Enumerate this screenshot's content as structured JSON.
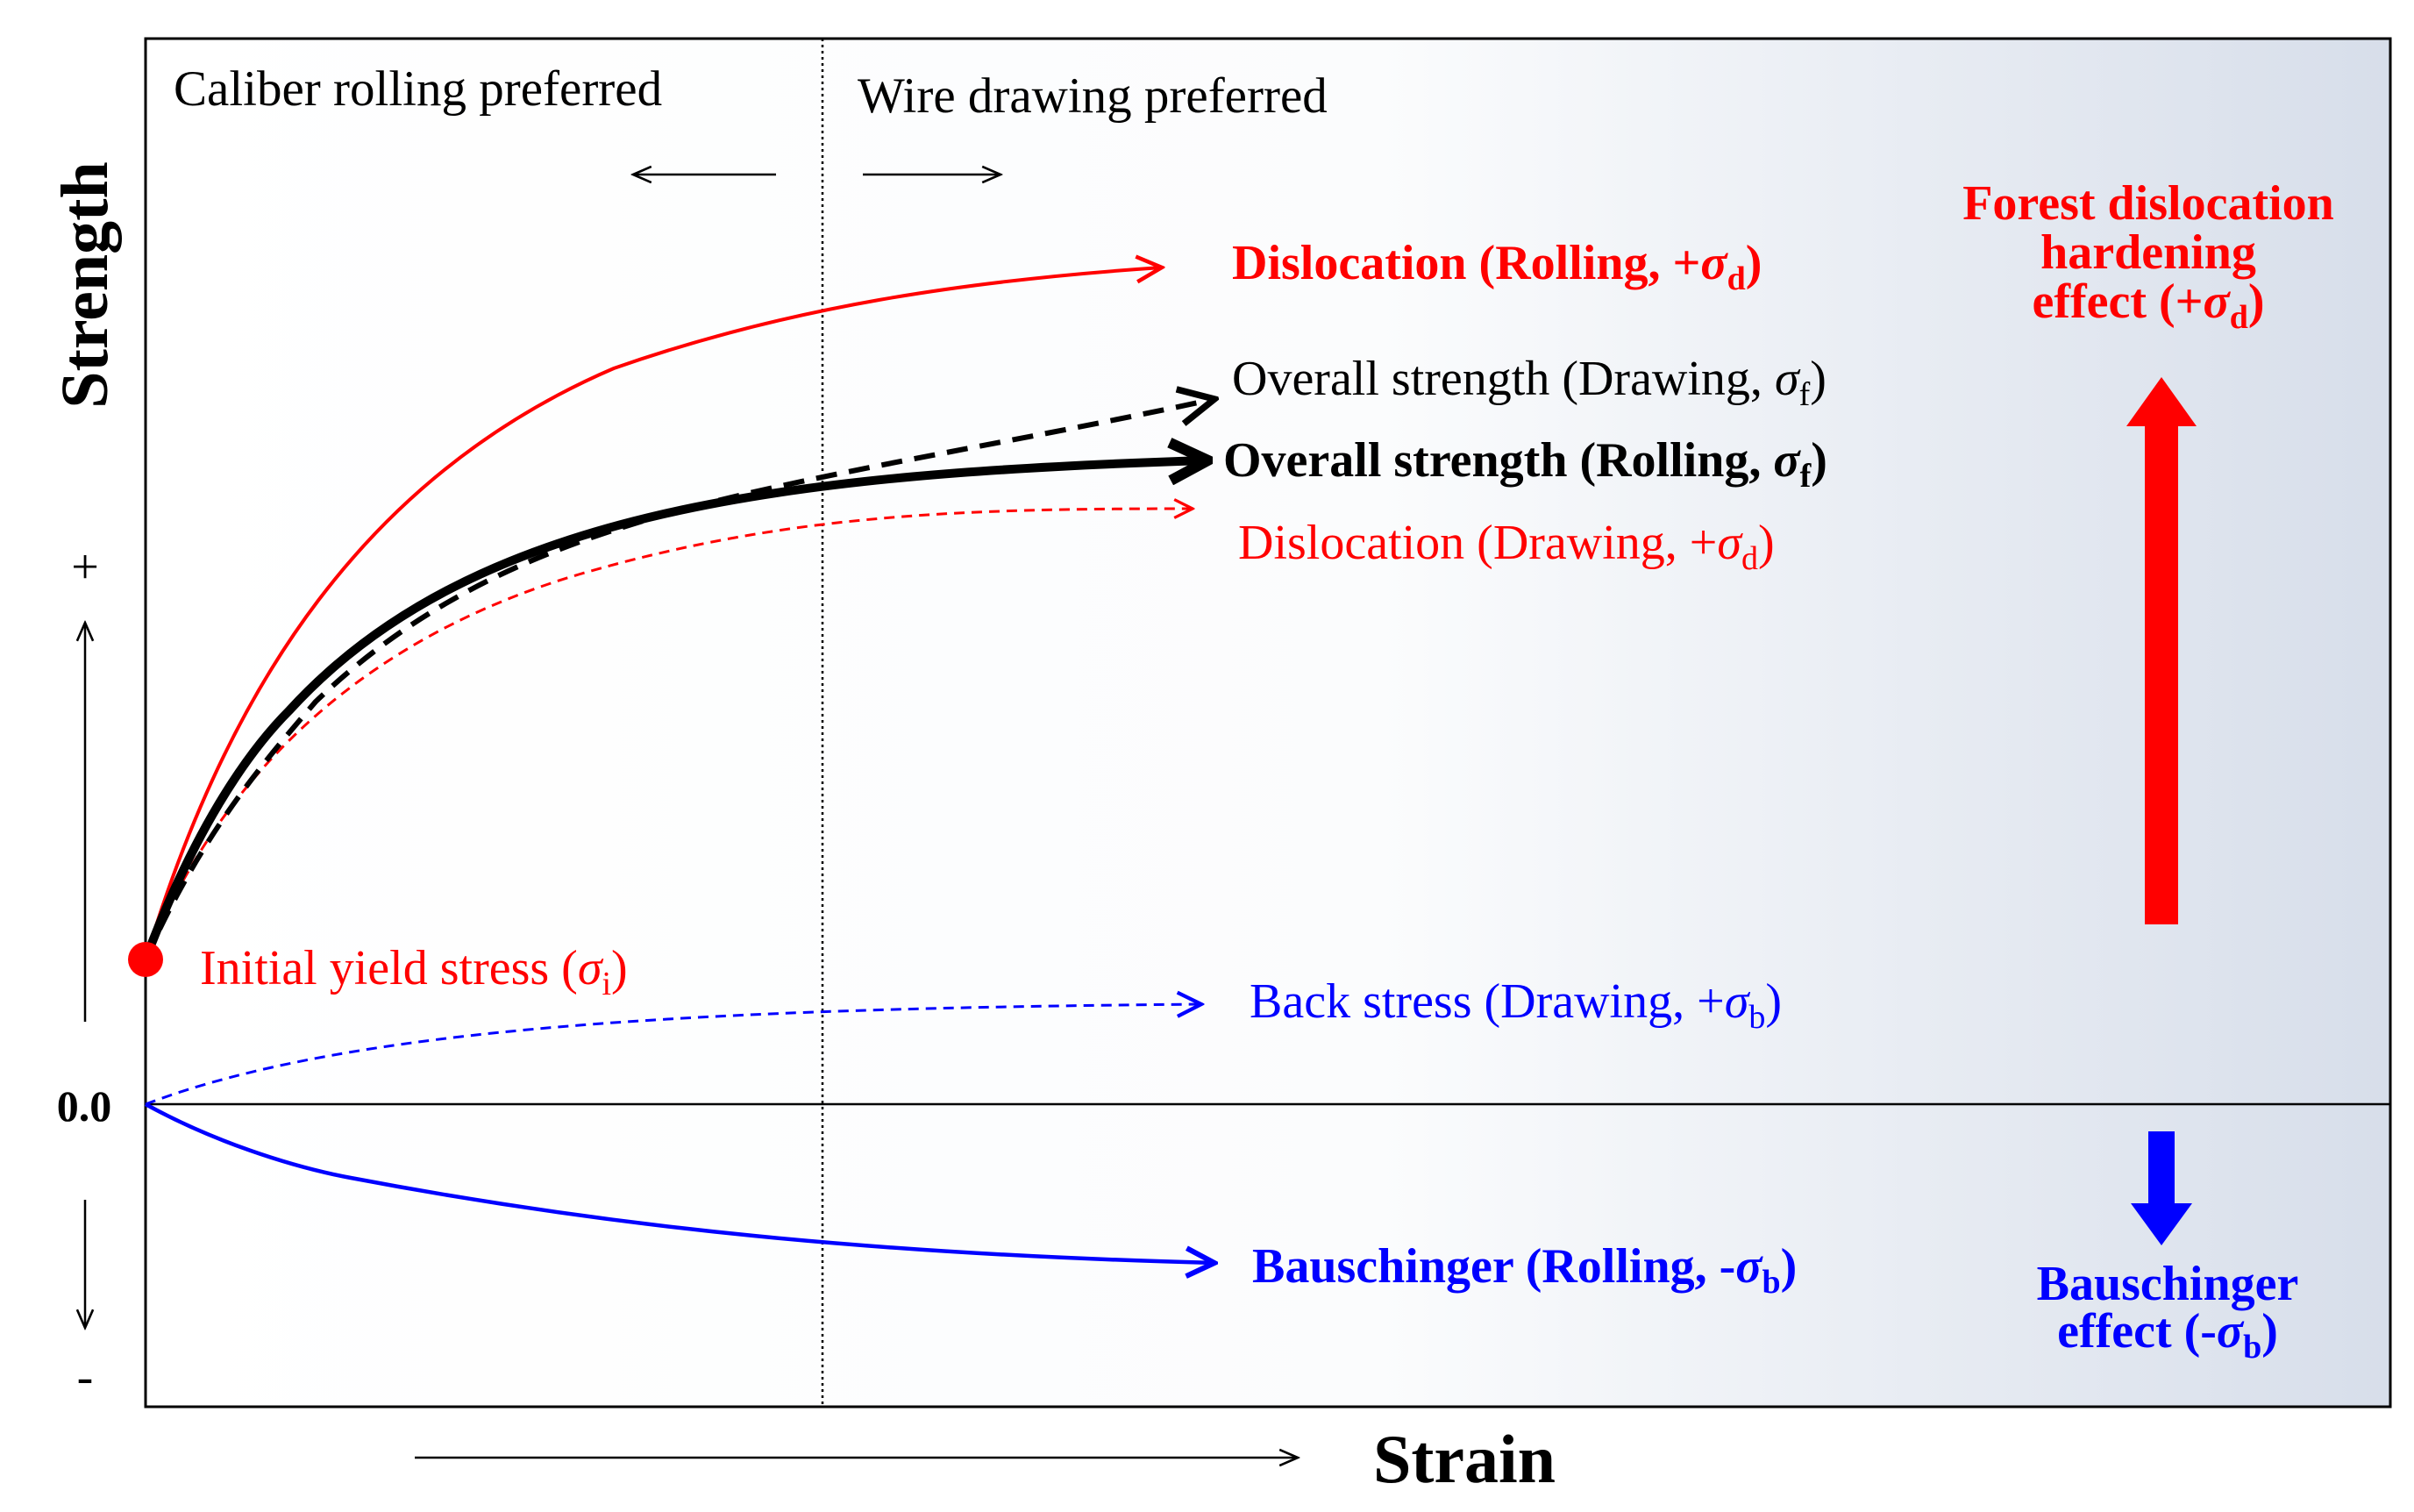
{
  "colors": {
    "red": "#ff0000",
    "blue": "#0000ff",
    "black": "#000000",
    "panel_right": "#d7deea"
  },
  "axes": {
    "y_label": "Strength",
    "x_label": "Strain",
    "plus": "+",
    "minus": "-",
    "zero": "0.0"
  },
  "regions": {
    "left": "Caliber rolling preferred",
    "right": "Wire drawing preferred"
  },
  "curves": {
    "dislocation_rolling": {
      "main": "Dislocation (Rolling, +",
      "sym": "σ",
      "sub": "d",
      "end": ")"
    },
    "overall_drawing": {
      "main": "Overall strength (Drawing, ",
      "sym": "σ",
      "sub": "f",
      "end": ")"
    },
    "overall_rolling": {
      "main": "Overall strength (Rolling, ",
      "sym": "σ",
      "sub": "f",
      "end": ")"
    },
    "dislocation_drawing": {
      "main": "Dislocation (Drawing,  +",
      "sym": "σ",
      "sub": "d",
      "end": ")"
    },
    "back_stress": {
      "main": "Back stress (Drawing,  +",
      "sym": "σ",
      "sub": "b",
      "end": ")"
    },
    "bauschinger_rolling": {
      "main": "Bauschinger (Rolling, -",
      "sym": "σ",
      "sub": "b",
      "end": ")"
    }
  },
  "initial": {
    "main": "Initial yield stress (",
    "sym": "σ",
    "sub": "i",
    "end": ")"
  },
  "effects": {
    "forest": {
      "line1": "Forest dislocation",
      "line2": "hardening",
      "line3_main": "effect (+",
      "sym": "σ",
      "sub": "d",
      "end": ")"
    },
    "bauschinger": {
      "line1": "Bauschinger",
      "line2_main": "effect (-",
      "sym": "σ",
      "sub": "b",
      "end": ")"
    }
  }
}
